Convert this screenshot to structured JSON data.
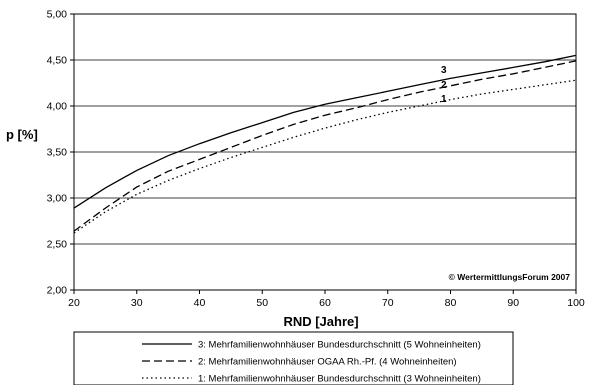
{
  "chart_data": {
    "type": "line",
    "title": "",
    "xlabel": "RND [Jahre]",
    "ylabel": "p [%]",
    "xlim": [
      20,
      100
    ],
    "ylim": [
      2.0,
      5.0
    ],
    "x_ticks": [
      20,
      30,
      40,
      50,
      60,
      70,
      80,
      90,
      100
    ],
    "y_ticks": [
      2.0,
      2.5,
      3.0,
      3.5,
      4.0,
      4.5,
      5.0
    ],
    "x_tick_labels": [
      "20",
      "30",
      "40",
      "50",
      "60",
      "70",
      "80",
      "90",
      "100"
    ],
    "y_tick_labels": [
      "2,00",
      "2,50",
      "3,00",
      "3,50",
      "4,00",
      "4,50",
      "5,00"
    ],
    "grid": "horizontal",
    "legend_position": "bottom",
    "annotation": "© WertermittlungsForum 2007",
    "x": [
      20,
      25,
      30,
      35,
      40,
      45,
      50,
      55,
      60,
      65,
      70,
      75,
      80,
      85,
      90,
      95,
      100
    ],
    "series": [
      {
        "name": "3: Mehrfamilienwohnhäuser Bundesdurchschnitt (5 Wohneinheiten)",
        "curve_label": "3",
        "dash": "solid",
        "values": [
          2.89,
          3.11,
          3.3,
          3.46,
          3.59,
          3.71,
          3.82,
          3.93,
          4.02,
          4.09,
          4.16,
          4.23,
          4.3,
          4.36,
          4.42,
          4.48,
          4.55
        ]
      },
      {
        "name": "2: Mehrfamilienwohnhäuser OGAA Rh.-Pf. (4 Wohneinheiten)",
        "curve_label": "2",
        "dash": "dashed",
        "values": [
          2.64,
          2.89,
          3.12,
          3.29,
          3.42,
          3.55,
          3.68,
          3.8,
          3.9,
          3.98,
          4.07,
          4.15,
          4.22,
          4.29,
          4.35,
          4.42,
          4.49
        ]
      },
      {
        "name": "1: Mehrfamilienwohnhäuser Bundesdurchschnitt (3 Wohneinheiten)",
        "curve_label": "1",
        "dash": "dotted",
        "values": [
          2.62,
          2.85,
          3.04,
          3.19,
          3.32,
          3.44,
          3.55,
          3.66,
          3.76,
          3.85,
          3.93,
          4.0,
          4.07,
          4.13,
          4.18,
          4.23,
          4.28
        ]
      }
    ]
  }
}
